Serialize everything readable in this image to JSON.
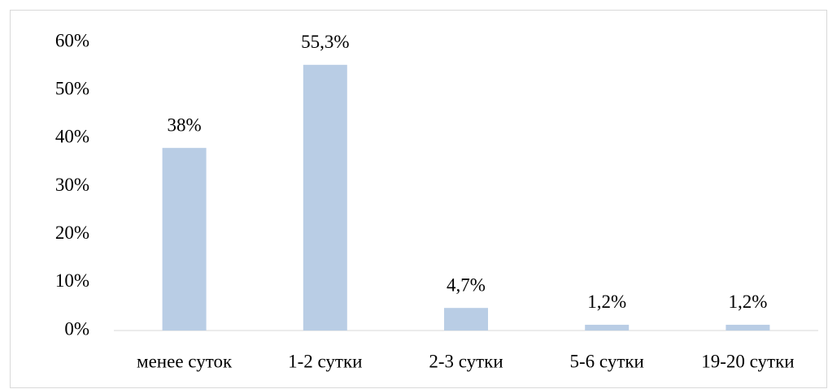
{
  "chart_data": {
    "type": "bar",
    "categories": [
      "менее суток",
      "1-2 сутки",
      "2-3 сутки",
      "5-6 сутки",
      "19-20 сутки"
    ],
    "values": [
      38,
      55.3,
      4.7,
      1.2,
      1.2
    ],
    "value_labels": [
      "38%",
      "55,3%",
      "4,7%",
      "1,2%",
      "1,2%"
    ],
    "color": "#b9cde5",
    "ylim": [
      0,
      60
    ],
    "yticks": [
      {
        "value": 0,
        "label": "0%"
      },
      {
        "value": 10,
        "label": "10%"
      },
      {
        "value": 20,
        "label": "20%"
      },
      {
        "value": 30,
        "label": "30%"
      },
      {
        "value": 40,
        "label": "40%"
      },
      {
        "value": 50,
        "label": "50%"
      },
      {
        "value": 60,
        "label": "60%"
      }
    ],
    "grid": false
  }
}
